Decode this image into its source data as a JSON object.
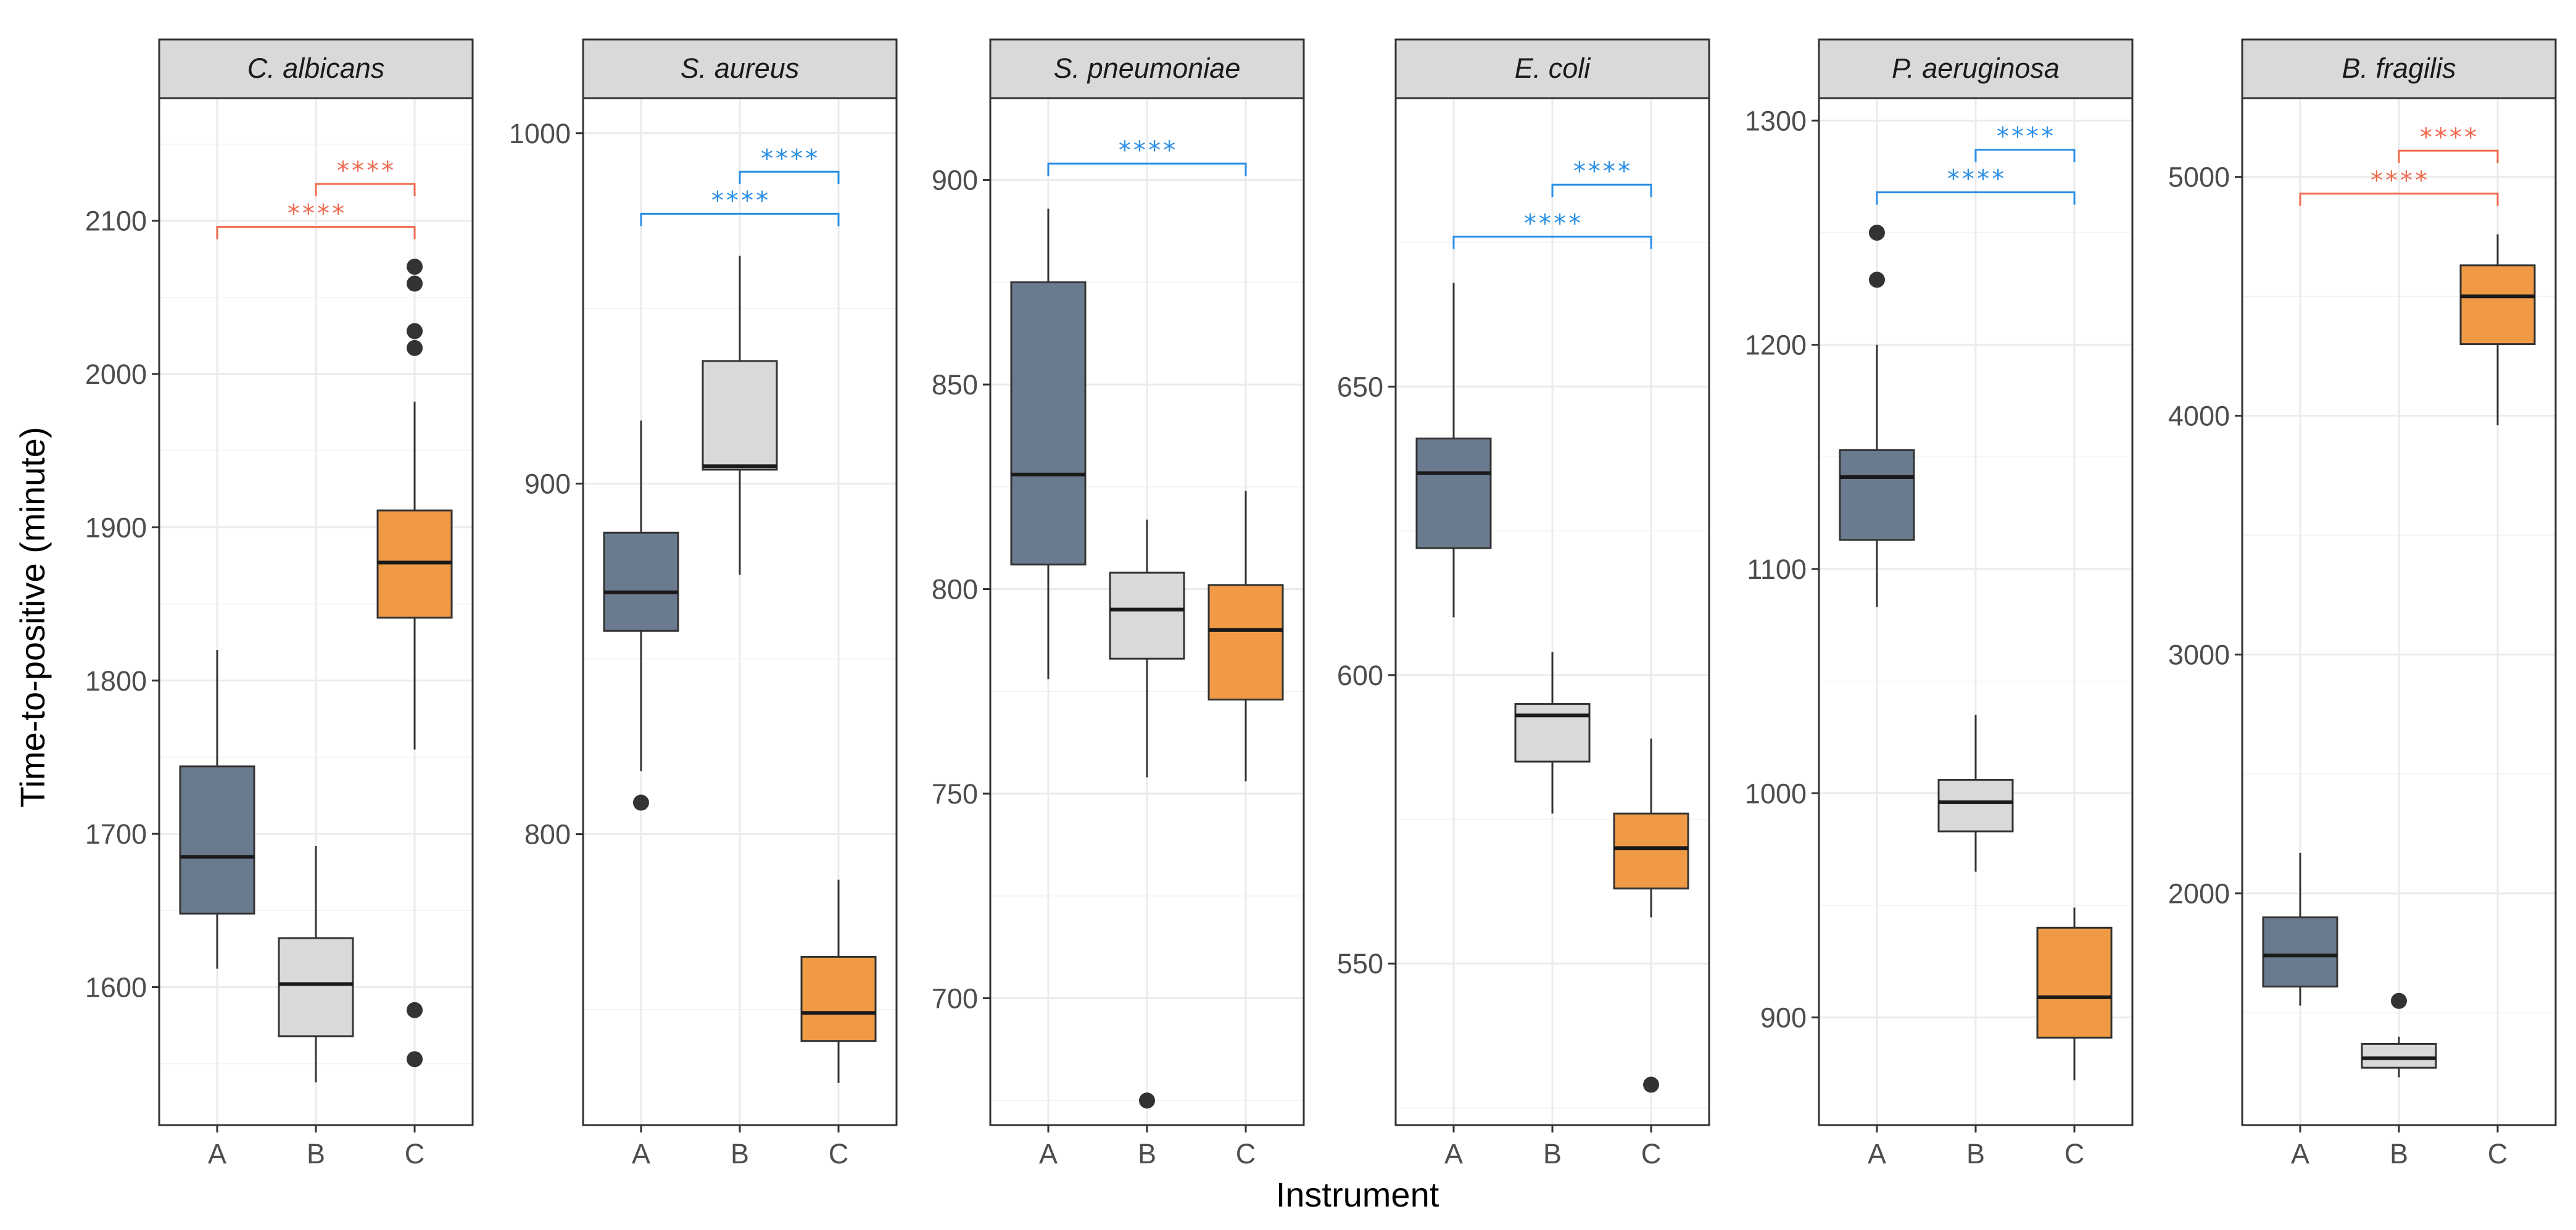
{
  "chart_data": {
    "type": "boxplot",
    "xlabel": "Instrument",
    "ylabel": "Time-to-positive (minute)",
    "categories": [
      "A",
      "B",
      "C"
    ],
    "colors": {
      "A": "#6b7b8f",
      "B": "#d9d9d9",
      "C": "#f09a45"
    },
    "sig_colors": {
      "red": "#f06a50",
      "blue": "#2b8fe6"
    },
    "panels": [
      {
        "title": "C. albicans",
        "ylim": [
          1510,
          2180
        ],
        "ticks": [
          1600,
          1700,
          1800,
          1900,
          2000,
          2100
        ],
        "boxes": [
          {
            "category": "A",
            "whisker_low": 1612,
            "q1": 1648,
            "median": 1685,
            "q3": 1744,
            "whisker_high": 1820,
            "outliers": []
          },
          {
            "category": "B",
            "whisker_low": 1538,
            "q1": 1568,
            "median": 1602,
            "q3": 1632,
            "whisker_high": 1692,
            "outliers": []
          },
          {
            "category": "C",
            "whisker_low": 1755,
            "q1": 1841,
            "median": 1877,
            "q3": 1911,
            "whisker_high": 1982,
            "outliers": [
              1553,
              1585,
              2017,
              2028,
              2059,
              2070
            ]
          }
        ],
        "significance": [
          {
            "from": "B",
            "to": "C",
            "label": "****",
            "level": 2124,
            "color": "red"
          },
          {
            "from": "A",
            "to": "C",
            "label": "****",
            "level": 2096,
            "color": "red"
          }
        ]
      },
      {
        "title": "S. aureus",
        "ylim": [
          717,
          1010
        ],
        "ticks": [
          800,
          900,
          1000
        ],
        "boxes": [
          {
            "category": "A",
            "whisker_low": 818,
            "q1": 858,
            "median": 869,
            "q3": 886,
            "whisker_high": 918,
            "outliers": [
              809
            ]
          },
          {
            "category": "B",
            "whisker_low": 874,
            "q1": 904,
            "median": 905,
            "q3": 935,
            "whisker_high": 965,
            "outliers": []
          },
          {
            "category": "C",
            "whisker_low": 729,
            "q1": 741,
            "median": 749,
            "q3": 765,
            "whisker_high": 787,
            "outliers": []
          }
        ],
        "significance": [
          {
            "from": "B",
            "to": "C",
            "label": "****",
            "level": 989,
            "color": "blue"
          },
          {
            "from": "A",
            "to": "C",
            "label": "****",
            "level": 977,
            "color": "blue"
          }
        ]
      },
      {
        "title": "S. pneumoniae",
        "ylim": [
          669,
          920
        ],
        "ticks": [
          700,
          750,
          800,
          850,
          900
        ],
        "boxes": [
          {
            "category": "A",
            "whisker_low": 778,
            "q1": 806,
            "median": 828,
            "q3": 875,
            "whisker_high": 893,
            "outliers": []
          },
          {
            "category": "B",
            "whisker_low": 754,
            "q1": 783,
            "median": 795,
            "q3": 804,
            "whisker_high": 817,
            "outliers": [
              675
            ]
          },
          {
            "category": "C",
            "whisker_low": 753,
            "q1": 773,
            "median": 790,
            "q3": 801,
            "whisker_high": 824,
            "outliers": []
          }
        ],
        "significance": [
          {
            "from": "A",
            "to": "C",
            "label": "****",
            "level": 904,
            "color": "blue"
          }
        ]
      },
      {
        "title": "E. coli",
        "ylim": [
          522,
          700
        ],
        "ticks": [
          550,
          600,
          650
        ],
        "boxes": [
          {
            "category": "A",
            "whisker_low": 610,
            "q1": 622,
            "median": 635,
            "q3": 641,
            "whisker_high": 668,
            "outliers": []
          },
          {
            "category": "B",
            "whisker_low": 576,
            "q1": 585,
            "median": 593,
            "q3": 595,
            "whisker_high": 604,
            "outliers": []
          },
          {
            "category": "C",
            "whisker_low": 558,
            "q1": 563,
            "median": 570,
            "q3": 576,
            "whisker_high": 589,
            "outliers": [
              529
            ]
          }
        ],
        "significance": [
          {
            "from": "B",
            "to": "C",
            "label": "****",
            "level": 685,
            "color": "blue"
          },
          {
            "from": "A",
            "to": "C",
            "label": "****",
            "level": 676,
            "color": "blue"
          }
        ]
      },
      {
        "title": "P. aeruginosa",
        "ylim": [
          852,
          1310
        ],
        "ticks": [
          900,
          1000,
          1100,
          1200,
          1300
        ],
        "boxes": [
          {
            "category": "A",
            "whisker_low": 1083,
            "q1": 1113,
            "median": 1141,
            "q3": 1153,
            "whisker_high": 1200,
            "outliers": [
              1229,
              1250
            ]
          },
          {
            "category": "B",
            "whisker_low": 965,
            "q1": 983,
            "median": 996,
            "q3": 1006,
            "whisker_high": 1035,
            "outliers": []
          },
          {
            "category": "C",
            "whisker_low": 872,
            "q1": 891,
            "median": 909,
            "q3": 940,
            "whisker_high": 949,
            "outliers": []
          }
        ],
        "significance": [
          {
            "from": "B",
            "to": "C",
            "label": "****",
            "level": 1287,
            "color": "blue"
          },
          {
            "from": "A",
            "to": "C",
            "label": "****",
            "level": 1268,
            "color": "blue"
          }
        ]
      },
      {
        "title": "B. fragilis",
        "ylim": [
          1030,
          5330
        ],
        "ticks": [
          2000,
          3000,
          4000,
          5000
        ],
        "boxes": [
          {
            "category": "A",
            "whisker_low": 1530,
            "q1": 1610,
            "median": 1740,
            "q3": 1900,
            "whisker_high": 2170,
            "outliers": []
          },
          {
            "category": "B",
            "whisker_low": 1230,
            "q1": 1270,
            "median": 1310,
            "q3": 1370,
            "whisker_high": 1400,
            "outliers": [
              1550
            ]
          },
          {
            "category": "C",
            "whisker_low": 3960,
            "q1": 4300,
            "median": 4500,
            "q3": 4630,
            "whisker_high": 4760,
            "outliers": []
          }
        ],
        "significance": [
          {
            "from": "B",
            "to": "C",
            "label": "****",
            "level": 5110,
            "color": "red"
          },
          {
            "from": "A",
            "to": "C",
            "label": "****",
            "level": 4930,
            "color": "red"
          }
        ]
      }
    ]
  }
}
